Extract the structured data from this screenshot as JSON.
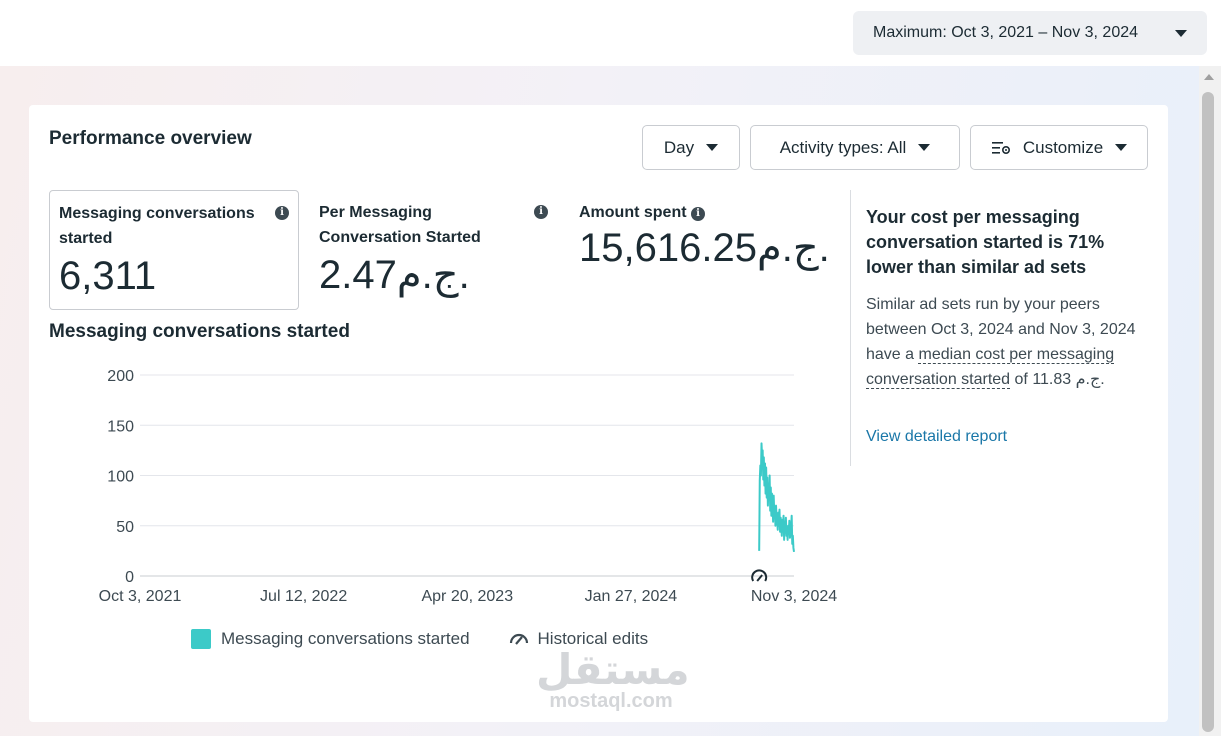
{
  "header": {
    "date_range": "Maximum: Oct 3, 2021 – Nov 3, 2024"
  },
  "overview": {
    "title": "Performance overview",
    "buttons": {
      "day": "Day",
      "activity": "Activity types: All",
      "customize": "Customize"
    },
    "metrics": [
      {
        "label": "Messaging conversations started",
        "value": "6,311"
      },
      {
        "label": "Per Messaging Conversation Started",
        "value": "2.47ج.م."
      },
      {
        "label": "Amount spent",
        "value": "15,616.25ج.م."
      }
    ],
    "insight": {
      "headline": "Your cost per messaging conversation started is 71% lower than similar ad sets",
      "body_part1": "Similar ad sets run by your peers between Oct 3, 2024 and Nov 3, 2024 have a ",
      "body_link": "median cost per messaging conversation started",
      "body_part2": " of 11.83 ج.م.",
      "link": "View detailed report"
    },
    "legend": {
      "series": "Messaging conversations started",
      "historical": "Historical edits"
    }
  },
  "chart_data": {
    "type": "line",
    "title": "Messaging conversations started",
    "xlabel": "",
    "ylabel": "",
    "ylim": [
      0,
      200
    ],
    "yticks": [
      "200",
      "150",
      "100",
      "50",
      "0"
    ],
    "xticks": [
      "Oct 3, 2021",
      "Jul 12, 2022",
      "Apr 20, 2023",
      "Jan 27, 2024",
      "Nov 3, 2024"
    ],
    "grid": true,
    "legend": "bottom",
    "color": "#3ccac8",
    "series": [
      {
        "name": "Messaging conversations started",
        "x": [
          "2024-09-04",
          "2024-09-05",
          "2024-09-06",
          "2024-09-07",
          "2024-09-08",
          "2024-09-09",
          "2024-09-10",
          "2024-09-11",
          "2024-09-12",
          "2024-09-13",
          "2024-09-14",
          "2024-09-15",
          "2024-09-16",
          "2024-09-17",
          "2024-09-18",
          "2024-09-19",
          "2024-09-20",
          "2024-09-21",
          "2024-09-22",
          "2024-09-23",
          "2024-09-24",
          "2024-09-25",
          "2024-09-26",
          "2024-09-27",
          "2024-09-28",
          "2024-09-29",
          "2024-09-30",
          "2024-10-01",
          "2024-10-02",
          "2024-10-03",
          "2024-10-04",
          "2024-10-05",
          "2024-10-06",
          "2024-10-07",
          "2024-10-08",
          "2024-10-09",
          "2024-10-10",
          "2024-10-11",
          "2024-10-12",
          "2024-10-13",
          "2024-10-14",
          "2024-10-15",
          "2024-10-16",
          "2024-10-17",
          "2024-10-18",
          "2024-10-19",
          "2024-10-20",
          "2024-10-21",
          "2024-10-22",
          "2024-10-23",
          "2024-10-24",
          "2024-10-25",
          "2024-10-26",
          "2024-10-27",
          "2024-10-28",
          "2024-10-29",
          "2024-10-30",
          "2024-10-31",
          "2024-11-01",
          "2024-11-02",
          "2024-11-03"
        ],
        "values": [
          25,
          95,
          110,
          100,
          132,
          118,
          125,
          96,
          118,
          90,
          112,
          82,
          108,
          78,
          98,
          70,
          92,
          76,
          100,
          65,
          88,
          60,
          82,
          72,
          54,
          80,
          62,
          66,
          50,
          70,
          58,
          56,
          46,
          63,
          50,
          66,
          44,
          58,
          52,
          40,
          56,
          48,
          60,
          36,
          52,
          46,
          58,
          40,
          48,
          36,
          50,
          42,
          55,
          38,
          44,
          46,
          60,
          32,
          40,
          28,
          24
        ]
      }
    ],
    "historical_edit_marker": "2024-09-04"
  }
}
